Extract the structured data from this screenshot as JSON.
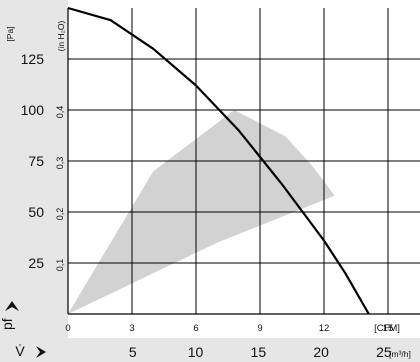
{
  "chart_data": {
    "type": "line",
    "x_axis_primary": {
      "unit": "[CFM]",
      "ticks": [
        0,
        3,
        6,
        9,
        12,
        15
      ],
      "range": [
        0,
        16.5
      ]
    },
    "x_axis_secondary": {
      "symbol": "V̇",
      "unit": "[m³/h]",
      "ticks": [
        5,
        10,
        15,
        20,
        25
      ]
    },
    "y_axis_primary": {
      "unit": "[Pa]",
      "ticks": [
        25,
        50,
        75,
        100,
        125
      ],
      "range": [
        0,
        150
      ]
    },
    "y_axis_secondary": {
      "unit": "(in H₂O)",
      "ticks": [
        "0,1",
        "0,2",
        "0,3",
        "0,4"
      ]
    },
    "y_symbol": "pf",
    "series": [
      {
        "type": "line",
        "x": [
          0,
          2,
          4,
          6,
          8,
          10,
          11,
          12,
          13,
          14.1
        ],
        "y": [
          150,
          144,
          130,
          112,
          90,
          64,
          50,
          36,
          20,
          0
        ]
      }
    ],
    "operating_region": {
      "type": "area",
      "x": [
        0,
        4,
        7.8,
        10.2,
        11.5,
        12.5,
        7,
        0
      ],
      "y": [
        0,
        70,
        100,
        87,
        72,
        58,
        35,
        0
      ]
    },
    "grid": true
  },
  "colors": {
    "axis_band": "#e6e6e6",
    "grid": "#000000",
    "curve": "#000000",
    "region": "#d2d2d2"
  }
}
